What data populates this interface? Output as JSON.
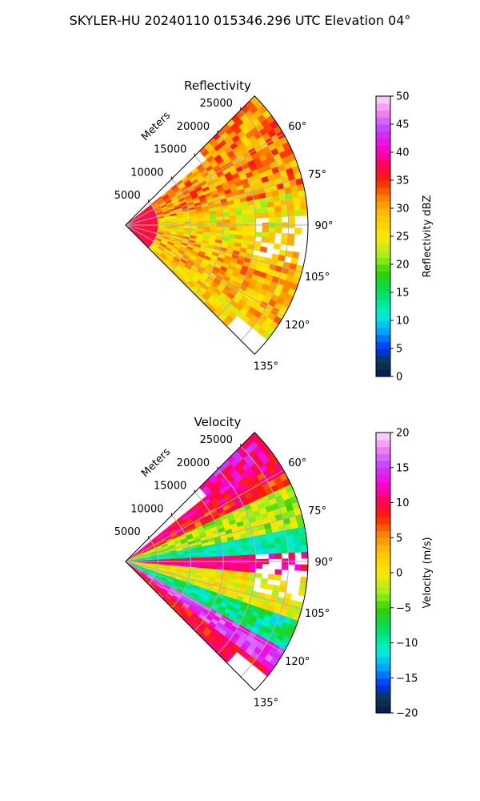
{
  "figure_title": "SKYLER-HU  20240110  015346.296 UTC Elevation 04°",
  "chart_data": [
    {
      "type": "heatmap",
      "subtype": "polar-sector (radar PPI)",
      "title": "Reflectivity",
      "radial_axis_label": "Meters",
      "radial_ticks": [
        "5000",
        "10000",
        "15000",
        "20000",
        "25000"
      ],
      "radial_tick_values": [
        5000,
        10000,
        15000,
        20000,
        25000
      ],
      "radial_max": 28000,
      "azimuth_ticks": [
        "60°",
        "75°",
        "90°",
        "105°",
        "120°",
        "135°"
      ],
      "azimuth_tick_values": [
        60,
        75,
        90,
        105,
        120,
        135
      ],
      "azimuth_range": [
        45,
        135
      ],
      "grid": true,
      "colorbar": {
        "label": "Reflectivity dBZ",
        "range": [
          0,
          50
        ],
        "ticks": [
          "0",
          "5",
          "10",
          "15",
          "20",
          "25",
          "30",
          "35",
          "40",
          "45",
          "50"
        ]
      },
      "field_description": [
        {
          "range_m": [
            0,
            5000
          ],
          "azimuth_deg": [
            45,
            135
          ],
          "dbz": [
            35,
            40
          ]
        },
        {
          "range_m": [
            5000,
            28000
          ],
          "azimuth_deg": [
            50,
            80
          ],
          "dbz": [
            28,
            36
          ]
        },
        {
          "range_m": [
            5000,
            28000
          ],
          "azimuth_deg": [
            80,
            115
          ],
          "dbz": [
            22,
            32
          ]
        },
        {
          "range_m": [
            8000,
            24000
          ],
          "azimuth_deg": [
            100,
            125
          ],
          "dbz": [
            25,
            35
          ]
        }
      ]
    },
    {
      "type": "heatmap",
      "subtype": "polar-sector (radar PPI)",
      "title": "Velocity",
      "radial_axis_label": "Meters",
      "radial_ticks": [
        "5000",
        "10000",
        "15000",
        "20000",
        "25000"
      ],
      "radial_tick_values": [
        5000,
        10000,
        15000,
        20000,
        25000
      ],
      "radial_max": 28000,
      "azimuth_ticks": [
        "60°",
        "75°",
        "90°",
        "105°",
        "120°",
        "135°"
      ],
      "azimuth_tick_values": [
        60,
        75,
        90,
        105,
        120,
        135
      ],
      "azimuth_range": [
        45,
        135
      ],
      "grid": true,
      "colorbar": {
        "label": "Velocity (m/s)",
        "range": [
          -20,
          20
        ],
        "ticks": [
          "−20",
          "−15",
          "−10",
          "−5",
          "0",
          "5",
          "10",
          "15",
          "20"
        ]
      },
      "field_description": [
        {
          "azimuth_deg": [
            50,
            65
          ],
          "velocity_ms": [
            8,
            16
          ]
        },
        {
          "azimuth_deg": [
            65,
            80
          ],
          "velocity_ms": [
            -6,
            4
          ]
        },
        {
          "azimuth_deg": [
            80,
            87
          ],
          "velocity_ms": [
            -12,
            -8
          ]
        },
        {
          "azimuth_deg": [
            87,
            95
          ],
          "velocity_ms": [
            8,
            14
          ]
        },
        {
          "azimuth_deg": [
            95,
            110
          ],
          "velocity_ms": [
            -4,
            4
          ]
        },
        {
          "azimuth_deg": [
            110,
            120
          ],
          "velocity_ms": [
            -12,
            -6
          ]
        },
        {
          "azimuth_deg": [
            120,
            128
          ],
          "velocity_ms": [
            12,
            18
          ]
        },
        {
          "azimuth_deg": [
            128,
            135
          ],
          "velocity_ms": [
            6,
            12
          ]
        }
      ]
    }
  ]
}
